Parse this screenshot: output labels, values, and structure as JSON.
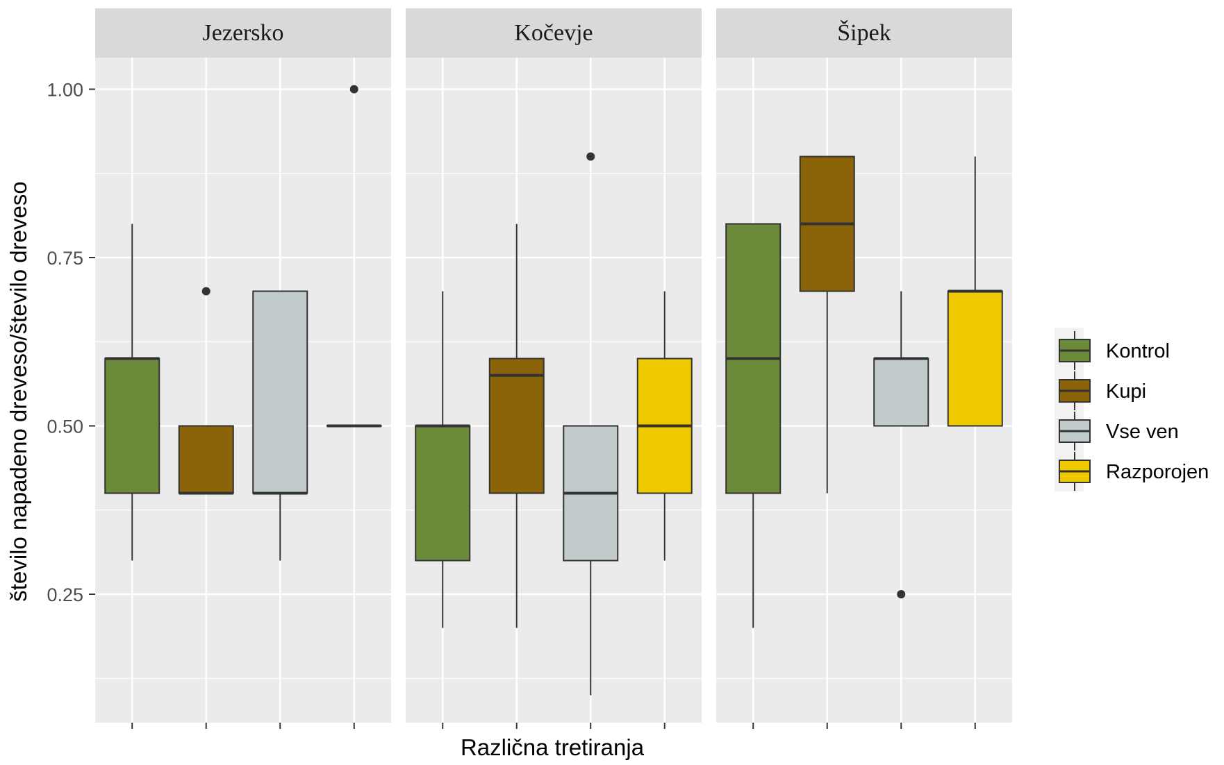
{
  "chart_data": {
    "type": "boxplot",
    "ylabel": "število napadeno dreveso/število dreveso",
    "xlabel": "Različna tretiranja",
    "ylim": [
      0.06,
      1.09
    ],
    "yticks": [
      0.25,
      0.5,
      0.75,
      1.0
    ],
    "ytick_labels": [
      "0.25",
      "0.50",
      "0.75",
      "1.00"
    ],
    "grid": true,
    "legend_position": "right",
    "treatments": [
      "Kontrol",
      "Kupi",
      "Vse ven",
      "Razporojen"
    ],
    "colors": {
      "Kontrol": "#6b8a3a",
      "Kupi": "#8b6309",
      "Vse ven": "#c2cbcb",
      "Razporojen": "#eec900"
    },
    "facets": [
      {
        "name": "Jezersko",
        "boxes": [
          {
            "group": "Kontrol",
            "whisker_low": 0.3,
            "q1": 0.4,
            "median": 0.6,
            "q3": 0.6,
            "whisker_high": 0.8,
            "outliers": []
          },
          {
            "group": "Kupi",
            "whisker_low": 0.4,
            "q1": 0.4,
            "median": 0.4,
            "q3": 0.5,
            "whisker_high": 0.5,
            "outliers": [
              0.7
            ]
          },
          {
            "group": "Vse ven",
            "whisker_low": 0.3,
            "q1": 0.4,
            "median": 0.4,
            "q3": 0.7,
            "whisker_high": 0.7,
            "outliers": []
          },
          {
            "group": "Razporojen",
            "whisker_low": 0.5,
            "q1": 0.5,
            "median": 0.5,
            "q3": 0.5,
            "whisker_high": 0.5,
            "outliers": [
              1.0
            ]
          }
        ]
      },
      {
        "name": "Kočevje",
        "boxes": [
          {
            "group": "Kontrol",
            "whisker_low": 0.2,
            "q1": 0.3,
            "median": 0.5,
            "q3": 0.5,
            "whisker_high": 0.7,
            "outliers": []
          },
          {
            "group": "Kupi",
            "whisker_low": 0.2,
            "q1": 0.4,
            "median": 0.575,
            "q3": 0.6,
            "whisker_high": 0.8,
            "outliers": []
          },
          {
            "group": "Vse ven",
            "whisker_low": 0.1,
            "q1": 0.3,
            "median": 0.4,
            "q3": 0.5,
            "whisker_high": 0.5,
            "outliers": [
              0.9
            ]
          },
          {
            "group": "Razporojen",
            "whisker_low": 0.3,
            "q1": 0.4,
            "median": 0.5,
            "q3": 0.6,
            "whisker_high": 0.7,
            "outliers": []
          }
        ]
      },
      {
        "name": "Šipek",
        "boxes": [
          {
            "group": "Kontrol",
            "whisker_low": 0.2,
            "q1": 0.4,
            "median": 0.6,
            "q3": 0.8,
            "whisker_high": 0.8,
            "outliers": []
          },
          {
            "group": "Kupi",
            "whisker_low": 0.4,
            "q1": 0.7,
            "median": 0.8,
            "q3": 0.9,
            "whisker_high": 0.9,
            "outliers": []
          },
          {
            "group": "Vse ven",
            "whisker_low": 0.5,
            "q1": 0.5,
            "median": 0.6,
            "q3": 0.6,
            "whisker_high": 0.7,
            "outliers": [
              0.25
            ]
          },
          {
            "group": "Razporojen",
            "whisker_low": 0.5,
            "q1": 0.5,
            "median": 0.7,
            "q3": 0.7,
            "whisker_high": 0.9,
            "outliers": []
          }
        ]
      }
    ]
  }
}
